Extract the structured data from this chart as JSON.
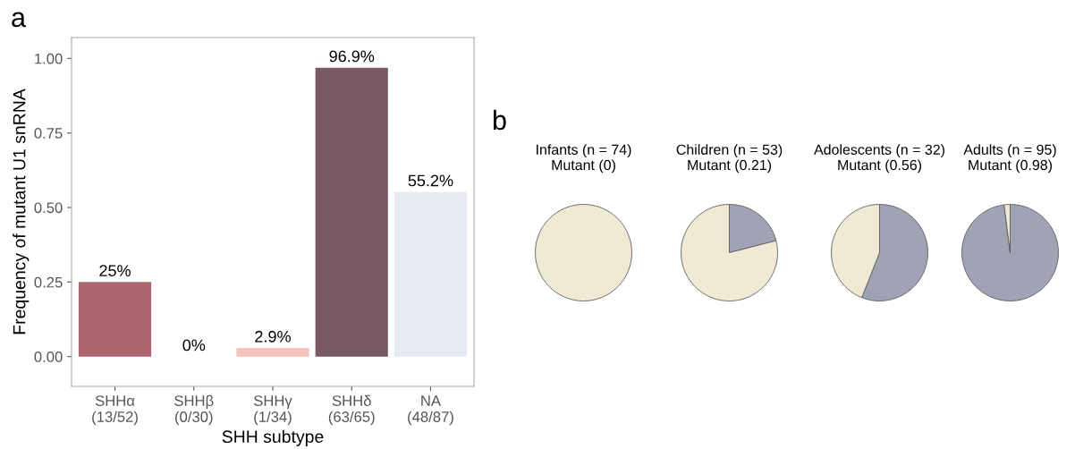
{
  "chart_data": [
    {
      "type": "bar",
      "annotations": [
        "a"
      ],
      "xlabel": "SHH subtype",
      "ylabel": "Frequency of mutant U1 snRNA",
      "categories": [
        "SHHα\n(13/52)",
        "SHHβ\n(0/30)",
        "SHHγ\n(1/34)",
        "SHHδ\n(63/65)",
        "NA\n(48/87)"
      ],
      "values": [
        0.25,
        0,
        0.029,
        0.969,
        0.552
      ],
      "value_labels": [
        "25%",
        "0%",
        "2.9%",
        "96.9%",
        "55.2%"
      ],
      "colors": [
        "#ac6670",
        "#f3eeee",
        "#f7c2bb",
        "#7a5a62",
        "#e6eaf4"
      ],
      "ylim": [
        -0.1,
        1.07
      ],
      "yticks": [
        {
          "value": 0,
          "label": "0.00"
        },
        {
          "value": 0.25,
          "label": "0.25"
        },
        {
          "value": 0.5,
          "label": "0.50"
        },
        {
          "value": 0.75,
          "label": "0.75"
        },
        {
          "value": 1,
          "label": "1.00"
        }
      ],
      "grid": false
    },
    {
      "type": "pie",
      "annotations": [
        "b"
      ],
      "title": "Infants (n = 74)\nMutant (0)",
      "categories": [
        null,
        null
      ],
      "values": [
        0,
        100
      ],
      "colors": [
        "#a0a3b5",
        "#f0e9d4"
      ]
    },
    {
      "type": "pie",
      "title": "Children (n = 53)\nMutant (0.21)",
      "categories": [
        null,
        null
      ],
      "values": [
        21,
        79
      ],
      "colors": [
        "#a0a3b5",
        "#f0e9d4"
      ]
    },
    {
      "type": "pie",
      "title": "Adolescents (n = 32)\nMutant (0.56)",
      "categories": [
        null,
        null
      ],
      "values": [
        56,
        44
      ],
      "colors": [
        "#a0a3b5",
        "#f0e9d4"
      ]
    },
    {
      "type": "pie",
      "title": "Adults (n = 95)\nMutant (0.98)",
      "categories": [
        null,
        null
      ],
      "values": [
        98,
        2
      ],
      "colors": [
        "#a0a3b5",
        "#f0e9d4"
      ]
    }
  ]
}
